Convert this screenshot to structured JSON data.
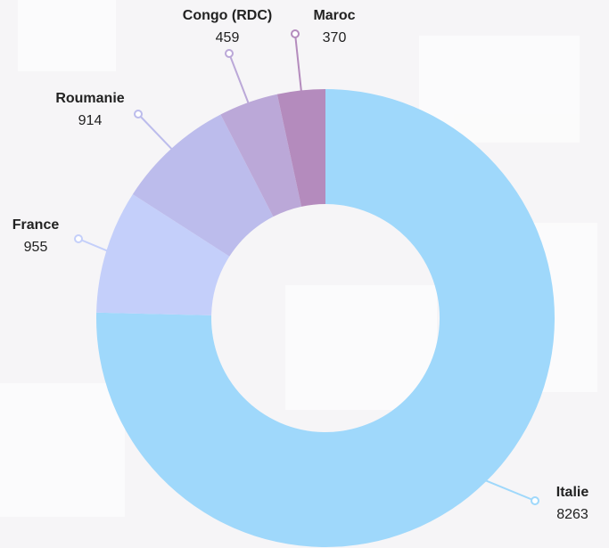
{
  "chart_data": {
    "type": "donut",
    "categories": [
      "Italie",
      "France",
      "Roumanie",
      "Congo (RDC)",
      "Maroc"
    ],
    "values": [
      8263,
      955,
      914,
      459,
      370
    ],
    "colors": [
      "#9fd8fb",
      "#c4cffa",
      "#bcbcec",
      "#bba8d8",
      "#b48bbd"
    ]
  }
}
